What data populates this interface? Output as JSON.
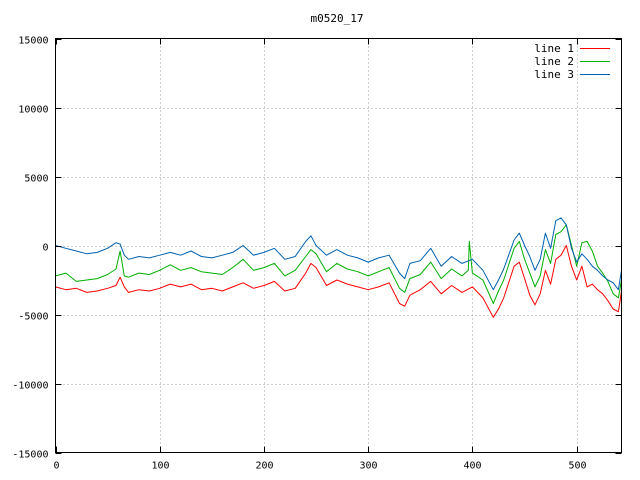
{
  "chart_data": {
    "type": "line",
    "title": "m0520_17",
    "xlabel": "",
    "ylabel": "",
    "xlim": [
      0,
      543
    ],
    "ylim": [
      -15000,
      15000
    ],
    "xticks": [
      0,
      100,
      200,
      300,
      400,
      500
    ],
    "yticks": [
      -15000,
      -10000,
      -5000,
      0,
      5000,
      10000,
      15000
    ],
    "grid": true,
    "legend_position": "top-right",
    "series": [
      {
        "name": "line 1",
        "color": "#ff0000",
        "x": [
          0,
          10,
          20,
          30,
          40,
          50,
          58,
          62,
          66,
          70,
          80,
          90,
          100,
          110,
          120,
          130,
          140,
          150,
          160,
          170,
          180,
          190,
          200,
          210,
          220,
          230,
          240,
          245,
          250,
          260,
          270,
          280,
          290,
          300,
          310,
          320,
          330,
          335,
          340,
          350,
          360,
          370,
          380,
          390,
          400,
          410,
          420,
          425,
          430,
          440,
          445,
          450,
          455,
          460,
          465,
          470,
          475,
          480,
          485,
          490,
          495,
          500,
          505,
          510,
          515,
          520,
          525,
          530,
          535,
          540,
          543
        ],
        "y": [
          -3000,
          -3200,
          -3100,
          -3400,
          -3300,
          -3100,
          -2900,
          -2300,
          -3000,
          -3400,
          -3200,
          -3300,
          -3100,
          -2800,
          -3000,
          -2800,
          -3200,
          -3100,
          -3300,
          -3000,
          -2700,
          -3100,
          -2900,
          -2600,
          -3300,
          -3100,
          -2000,
          -1300,
          -1600,
          -2900,
          -2500,
          -2800,
          -3000,
          -3200,
          -3000,
          -2700,
          -4200,
          -4400,
          -3600,
          -3200,
          -2600,
          -3500,
          -2900,
          -3400,
          -3000,
          -3800,
          -5200,
          -4600,
          -3800,
          -1500,
          -1200,
          -2400,
          -3600,
          -4300,
          -3500,
          -1800,
          -2800,
          -1000,
          -700,
          0,
          -1500,
          -2500,
          -1500,
          -3000,
          -2800,
          -3200,
          -3500,
          -4000,
          -4600,
          -4800,
          -3300
        ]
      },
      {
        "name": "line 2",
        "color": "#00b000",
        "x": [
          0,
          10,
          20,
          30,
          40,
          50,
          58,
          62,
          66,
          70,
          80,
          90,
          100,
          110,
          120,
          130,
          140,
          150,
          160,
          170,
          180,
          190,
          200,
          210,
          220,
          230,
          240,
          245,
          250,
          260,
          270,
          280,
          290,
          300,
          310,
          320,
          330,
          335,
          340,
          350,
          360,
          370,
          380,
          390,
          396,
          397,
          400,
          410,
          420,
          425,
          430,
          440,
          445,
          450,
          455,
          460,
          465,
          470,
          475,
          480,
          485,
          490,
          495,
          500,
          505,
          510,
          515,
          520,
          525,
          530,
          535,
          540,
          543
        ],
        "y": [
          -2200,
          -2000,
          -2600,
          -2500,
          -2400,
          -2100,
          -1700,
          -400,
          -2200,
          -2300,
          -2000,
          -2100,
          -1800,
          -1400,
          -1800,
          -1600,
          -1900,
          -2000,
          -2100,
          -1600,
          -1000,
          -1800,
          -1600,
          -1300,
          -2200,
          -1800,
          -800,
          -300,
          -600,
          -1900,
          -1300,
          -1700,
          -1900,
          -2200,
          -1900,
          -1600,
          -3100,
          -3400,
          -2400,
          -2100,
          -1200,
          -2400,
          -1700,
          -2200,
          -1800,
          300,
          -2000,
          -2500,
          -4200,
          -3300,
          -2500,
          -200,
          300,
          -1000,
          -2000,
          -3000,
          -2200,
          -300,
          -1300,
          800,
          1000,
          1500,
          0,
          -1500,
          200,
          300,
          -400,
          -1500,
          -2000,
          -2600,
          -3500,
          -3800,
          -2500
        ]
      },
      {
        "name": "line 3",
        "color": "#0060b0",
        "x": [
          0,
          10,
          20,
          30,
          40,
          50,
          58,
          62,
          66,
          70,
          80,
          90,
          100,
          110,
          120,
          130,
          140,
          150,
          160,
          170,
          180,
          190,
          200,
          210,
          220,
          230,
          240,
          245,
          250,
          260,
          270,
          280,
          290,
          300,
          310,
          320,
          330,
          335,
          340,
          350,
          360,
          370,
          380,
          390,
          400,
          410,
          420,
          425,
          430,
          440,
          445,
          450,
          455,
          460,
          465,
          470,
          475,
          480,
          485,
          490,
          495,
          500,
          505,
          510,
          515,
          520,
          525,
          530,
          535,
          540,
          543
        ],
        "y": [
          0,
          -200,
          -400,
          -600,
          -500,
          -200,
          200,
          100,
          -700,
          -1000,
          -800,
          -900,
          -700,
          -500,
          -700,
          -400,
          -800,
          -900,
          -700,
          -500,
          0,
          -700,
          -500,
          -200,
          -1000,
          -800,
          300,
          700,
          0,
          -700,
          -300,
          -700,
          -900,
          -1200,
          -900,
          -700,
          -2000,
          -2400,
          -1300,
          -1100,
          -200,
          -1500,
          -800,
          -1300,
          -1000,
          -1800,
          -3200,
          -2500,
          -1700,
          400,
          900,
          0,
          -800,
          -1800,
          -1000,
          900,
          -200,
          1800,
          2000,
          1500,
          -200,
          -1200,
          -600,
          -1000,
          -1500,
          -1800,
          -2200,
          -2500,
          -2700,
          -3200,
          -1800
        ]
      }
    ]
  }
}
